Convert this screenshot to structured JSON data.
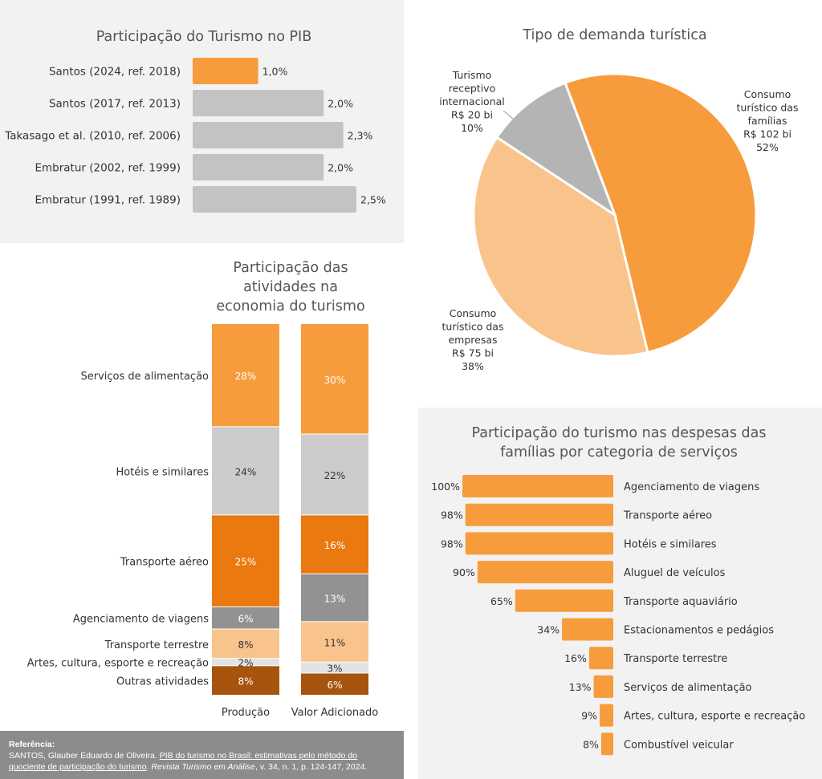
{
  "colors": {
    "orange": "#f79c3c",
    "grey_bar": "#c3c3c3",
    "pie_grey": "#b4b4b4",
    "light_orange": "#f9c48b",
    "dark_orange": "#ea790f",
    "light_grey": "#cccccc",
    "mid_grey": "#929292",
    "very_light_grey": "#e3e3e3",
    "brown": "#a7540e"
  },
  "pib_chart": {
    "title": "Participação do Turismo no PIB",
    "chart_data": {
      "type": "bar",
      "orientation": "horizontal",
      "categories": [
        "Santos (2024, ref. 2018)",
        "Santos (2017, ref. 2013)",
        "Takasago et al. (2010, ref. 2006)",
        "Embratur (2002, ref. 1999)",
        "Embratur (1991, ref. 1989)"
      ],
      "values": [
        1.0,
        2.0,
        2.3,
        2.0,
        2.5
      ],
      "value_labels": [
        "1,0%",
        "2,0%",
        "2,3%",
        "2,0%",
        "2,5%"
      ],
      "highlight_index": 0,
      "xlim": [
        0,
        2.5
      ]
    }
  },
  "demand_chart": {
    "title": "Tipo de demanda turística",
    "chart_data": {
      "type": "pie",
      "slices": [
        {
          "name": "Consumo turístico das famílias",
          "value": 52,
          "label_lines": [
            "Consumo",
            "turístico das",
            "famílias",
            "R$ 102 bi",
            "52%"
          ]
        },
        {
          "name": "Consumo turístico das empresas",
          "value": 38,
          "label_lines": [
            "Consumo",
            "turístico das",
            "empresas",
            "R$ 75 bi",
            "38%"
          ]
        },
        {
          "name": "Turismo receptivo internacional",
          "value": 10,
          "label_lines": [
            "Turismo",
            "receptivo",
            "internacional",
            "R$ 20 bi",
            "10%"
          ]
        }
      ]
    }
  },
  "activities_chart": {
    "title_lines": [
      "Participação das",
      "atividades na",
      "economia do turismo"
    ],
    "chart_data": {
      "type": "bar",
      "stacked": true,
      "normalized": true,
      "categories": [
        "Produção",
        "Valor Adicionado"
      ],
      "series": [
        {
          "name": "Serviços de alimentação",
          "values": [
            28,
            30
          ],
          "labels": [
            "28%",
            "30%"
          ]
        },
        {
          "name": "Hotéis e similares",
          "values": [
            24,
            22
          ],
          "labels": [
            "24%",
            "22%"
          ]
        },
        {
          "name": "Transporte aéreo",
          "values": [
            25,
            16
          ],
          "labels": [
            "25%",
            "16%"
          ]
        },
        {
          "name": "Agenciamento de viagens",
          "values": [
            6,
            13
          ],
          "labels": [
            "6%",
            "13%"
          ]
        },
        {
          "name": "Transporte terrestre",
          "values": [
            8,
            11
          ],
          "labels": [
            "8%",
            "11%"
          ]
        },
        {
          "name": "Artes, cultura, esporte e recreação",
          "values": [
            2,
            3
          ],
          "labels": [
            "2%",
            "3%"
          ]
        },
        {
          "name": "Outras atividades",
          "values": [
            8,
            6
          ],
          "labels": [
            "8%",
            "6%"
          ]
        }
      ]
    }
  },
  "expenses_chart": {
    "title_lines": [
      "Participação do turismo nas despesas das",
      "famílias por categoria de serviços"
    ],
    "chart_data": {
      "type": "bar",
      "orientation": "horizontal",
      "categories": [
        "Agenciamento de viagens",
        "Transporte aéreo",
        "Hotéis e similares",
        "Aluguel de veículos",
        "Transporte aquaviário",
        "Estacionamentos e pedágios",
        "Transporte terrestre",
        "Serviços de alimentação",
        "Artes, cultura, esporte e recreação",
        "Combustível veicular"
      ],
      "values": [
        100,
        98,
        98,
        90,
        65,
        34,
        16,
        13,
        9,
        8
      ],
      "value_labels": [
        "100%",
        "98%",
        "98%",
        "90%",
        "65%",
        "34%",
        "16%",
        "13%",
        "9%",
        "8%"
      ],
      "xlim": [
        0,
        100
      ]
    }
  },
  "reference": {
    "title": "Referência:",
    "authors": "SANTOS, Glauber Eduardo de Oliveira. ",
    "link_line1": "PIB do turismo no Brasil: estimativas pelo método do",
    "link_line2": "quociente de participação do turismo",
    "sep": ". ",
    "journal": "Revista Turismo em Análise",
    "details": ", v. 34, n. 1, p. 124-147, 2024."
  }
}
